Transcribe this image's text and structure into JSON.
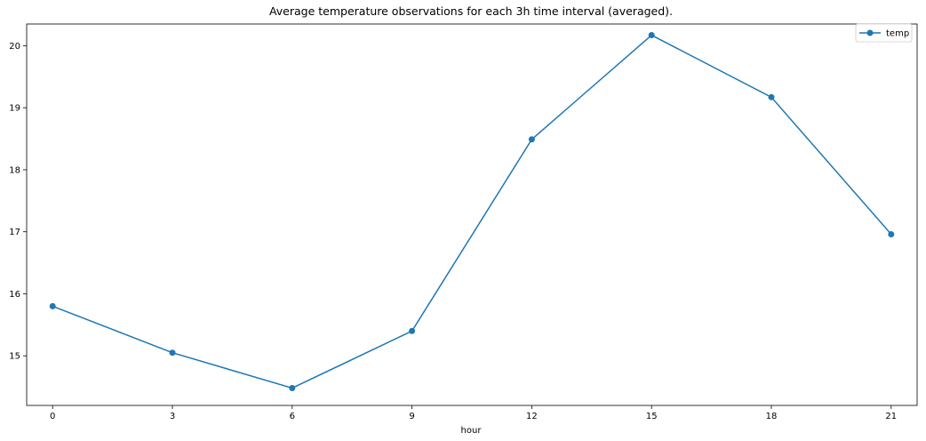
{
  "chart_data": {
    "type": "line",
    "title": "Average temperature observations for each 3h time interval (averaged).",
    "xlabel": "hour",
    "ylabel": "",
    "x": [
      0,
      3,
      6,
      9,
      12,
      15,
      18,
      21
    ],
    "xticks": [
      "0",
      "3",
      "6",
      "9",
      "12",
      "15",
      "18",
      "21"
    ],
    "yticks": [
      "15",
      "16",
      "17",
      "18",
      "19",
      "20"
    ],
    "xlim": [
      -0.65,
      21.65
    ],
    "ylim": [
      14.2,
      20.35
    ],
    "series": [
      {
        "name": "temp",
        "values": [
          15.8,
          15.05,
          14.48,
          15.4,
          18.49,
          20.17,
          19.17,
          16.96
        ],
        "color": "#1f77b4",
        "marker": "circle"
      }
    ],
    "grid": false,
    "legend": "top-right"
  }
}
